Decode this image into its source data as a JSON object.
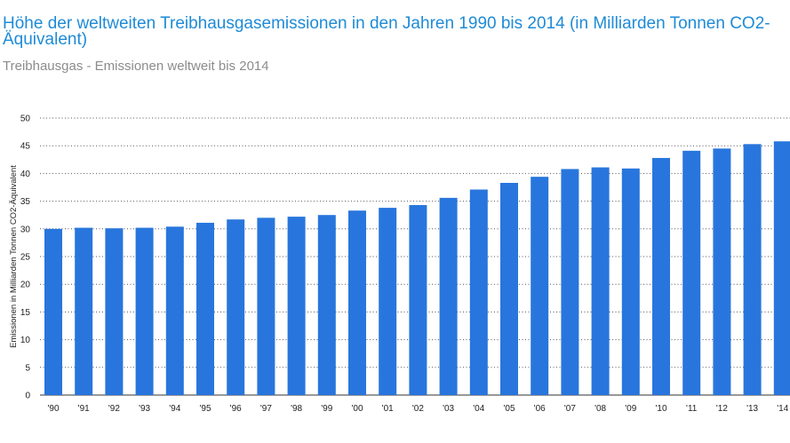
{
  "title": "Höhe der weltweiten Treibhausgasemissionen in den Jahren 1990 bis 2014 (in Milliarden Tonnen CO2-Äquivalent)",
  "subtitle": "Treibhausgas - Emissionen weltweit bis 2014",
  "chart_data": {
    "type": "bar",
    "title": "Höhe der weltweiten Treibhausgasemissionen in den Jahren 1990 bis 2014 (in Milliarden Tonnen CO2-Äquivalent)",
    "subtitle": "Treibhausgas - Emissionen weltweit bis 2014",
    "xlabel": "",
    "ylabel": "Emissionen in Milliarden Tonnen CO2-Äquivalent",
    "categories": [
      "'90",
      "'91",
      "'92",
      "'93",
      "'94",
      "'95",
      "'96",
      "'97",
      "'98",
      "'99",
      "'00",
      "'01",
      "'02",
      "'03",
      "'04",
      "'05",
      "'06",
      "'07",
      "'08",
      "'09",
      "'10",
      "'11",
      "'12",
      "'13",
      "'14"
    ],
    "values": [
      30.0,
      30.2,
      30.1,
      30.2,
      30.4,
      31.1,
      31.7,
      32.0,
      32.2,
      32.5,
      33.3,
      33.8,
      34.3,
      35.6,
      37.1,
      38.3,
      39.4,
      40.8,
      41.1,
      40.9,
      42.8,
      44.1,
      44.5,
      45.3,
      45.8
    ],
    "ylim": [
      0,
      50
    ],
    "yticks": [
      0,
      5,
      10,
      15,
      20,
      25,
      30,
      35,
      40,
      45,
      50
    ],
    "grid": true,
    "bar_color": "#2876dd",
    "grid_color": "#555555"
  }
}
